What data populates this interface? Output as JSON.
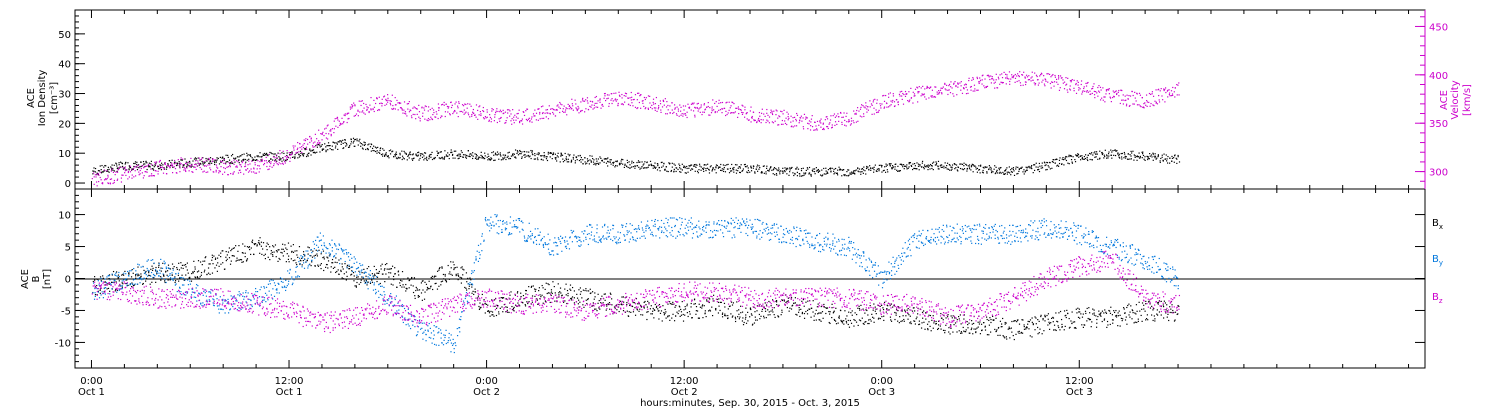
{
  "chart_data": [
    {
      "type": "scatter",
      "panel": "plasma",
      "title": "",
      "ylabel_left": [
        "ACE",
        "Ion Density",
        "[cm⁻³]"
      ],
      "ylabel_right": [
        "ACE",
        "Velocity",
        "[km/s]"
      ],
      "ylim_left": [
        -2,
        58
      ],
      "ylim_right": [
        282,
        467
      ],
      "yticks_left": [
        "0",
        "10",
        "20",
        "30",
        "40",
        "50"
      ],
      "yticks_right": [
        "300",
        "350",
        "400",
        "450"
      ],
      "grid": false,
      "series": [
        {
          "axis": "left",
          "color": "#000000",
          "x_hours": [
            0,
            2,
            4,
            6,
            8,
            10,
            12,
            14,
            16,
            18,
            20,
            22,
            24,
            26,
            28,
            30,
            32,
            34,
            36,
            38,
            40,
            42,
            44,
            46,
            48,
            50,
            52,
            54,
            56,
            58,
            60,
            62,
            64,
            66
          ],
          "values": [
            4,
            6,
            6,
            7,
            8,
            9,
            9,
            12,
            14,
            10,
            9,
            10,
            9,
            10,
            9,
            8,
            7,
            6,
            5,
            5,
            5,
            4,
            4,
            4,
            5,
            6,
            6,
            5,
            4,
            6,
            9,
            10,
            9,
            8
          ]
        },
        {
          "axis": "right",
          "color": "#cc00cc",
          "x_hours": [
            0,
            2,
            4,
            6,
            8,
            10,
            12,
            14,
            16,
            18,
            20,
            22,
            24,
            26,
            28,
            30,
            32,
            34,
            36,
            38,
            40,
            42,
            44,
            46,
            48,
            50,
            52,
            54,
            56,
            58,
            60,
            62,
            64,
            66
          ],
          "values": [
            293,
            298,
            304,
            308,
            305,
            306,
            318,
            338,
            365,
            374,
            360,
            366,
            360,
            356,
            364,
            370,
            376,
            372,
            363,
            368,
            360,
            356,
            350,
            356,
            372,
            380,
            385,
            392,
            398,
            395,
            388,
            378,
            374,
            385
          ]
        }
      ]
    },
    {
      "type": "scatter",
      "panel": "magnetic-field",
      "title": "",
      "ylabel": [
        "ACE",
        "B",
        "[nT]"
      ],
      "ylim": [
        -14,
        14
      ],
      "yticks": [
        "-10",
        "-5",
        "0",
        "5",
        "10"
      ],
      "zero_line": true,
      "grid": false,
      "legend_position": "right",
      "series": [
        {
          "name": "Bx",
          "color": "#000000",
          "x_hours": [
            0,
            2,
            4,
            6,
            8,
            10,
            12,
            14,
            16,
            18,
            20,
            22,
            24,
            26,
            28,
            30,
            32,
            34,
            36,
            38,
            40,
            42,
            44,
            46,
            48,
            50,
            52,
            54,
            56,
            58,
            60,
            62,
            64,
            66
          ],
          "values": [
            -1,
            0,
            1,
            1,
            3,
            5,
            4,
            3,
            0,
            1,
            -2,
            2,
            -5,
            -3,
            -2,
            -3,
            -4,
            -5,
            -5,
            -4,
            -6,
            -4,
            -5,
            -6,
            -5,
            -6,
            -7,
            -7,
            -8,
            -7,
            -6,
            -6,
            -5,
            -5
          ]
        },
        {
          "name": "By",
          "color": "#0077dd",
          "x_hours": [
            0,
            2,
            4,
            6,
            8,
            10,
            12,
            14,
            16,
            18,
            20,
            22,
            24,
            26,
            28,
            30,
            32,
            34,
            36,
            38,
            40,
            42,
            44,
            46,
            48,
            50,
            52,
            54,
            56,
            58,
            60,
            62,
            64,
            66
          ],
          "values": [
            -2,
            0,
            2,
            -2,
            -4,
            -3,
            0,
            6,
            2,
            -3,
            -8,
            -10,
            9,
            8,
            5,
            7,
            7,
            8,
            8,
            8,
            8,
            7,
            6,
            5,
            0,
            6,
            7,
            7,
            7,
            8,
            7,
            5,
            3,
            0
          ]
        },
        {
          "name": "Bz",
          "color": "#cc00cc",
          "x_hours": [
            0,
            2,
            4,
            6,
            8,
            10,
            12,
            14,
            16,
            18,
            20,
            22,
            24,
            26,
            28,
            30,
            32,
            34,
            36,
            38,
            40,
            42,
            44,
            46,
            48,
            50,
            52,
            54,
            56,
            58,
            60,
            62,
            64,
            66
          ],
          "values": [
            -2,
            -2,
            -3,
            -3,
            -3,
            -4,
            -5,
            -7,
            -6,
            -4,
            -6,
            -4,
            -3,
            -4,
            -4,
            -5,
            -4,
            -3,
            -2,
            -2,
            -3,
            -3,
            -3,
            -3,
            -4,
            -4,
            -6,
            -5,
            -3,
            0,
            2,
            3,
            -3,
            -4
          ]
        }
      ],
      "legend": [
        {
          "label": "B",
          "sub": "x",
          "color": "#000000"
        },
        {
          "label": "B",
          "sub": "y",
          "color": "#0077dd"
        },
        {
          "label": "B",
          "sub": "z",
          "color": "#cc00cc"
        }
      ]
    }
  ],
  "x_axis": {
    "range_hours": [
      -1,
      81
    ],
    "ticks": [
      {
        "hour": 0,
        "time": "0:00",
        "date": "Oct 1"
      },
      {
        "hour": 12,
        "time": "12:00",
        "date": "Oct 1"
      },
      {
        "hour": 24,
        "time": "0:00",
        "date": "Oct 2"
      },
      {
        "hour": 36,
        "time": "12:00",
        "date": "Oct 2"
      },
      {
        "hour": 48,
        "time": "0:00",
        "date": "Oct 3"
      },
      {
        "hour": 60,
        "time": "12:00",
        "date": "Oct 3"
      }
    ],
    "xlabel": "hours:minutes, Sep. 30, 2015 - Oct. 3, 2015"
  }
}
